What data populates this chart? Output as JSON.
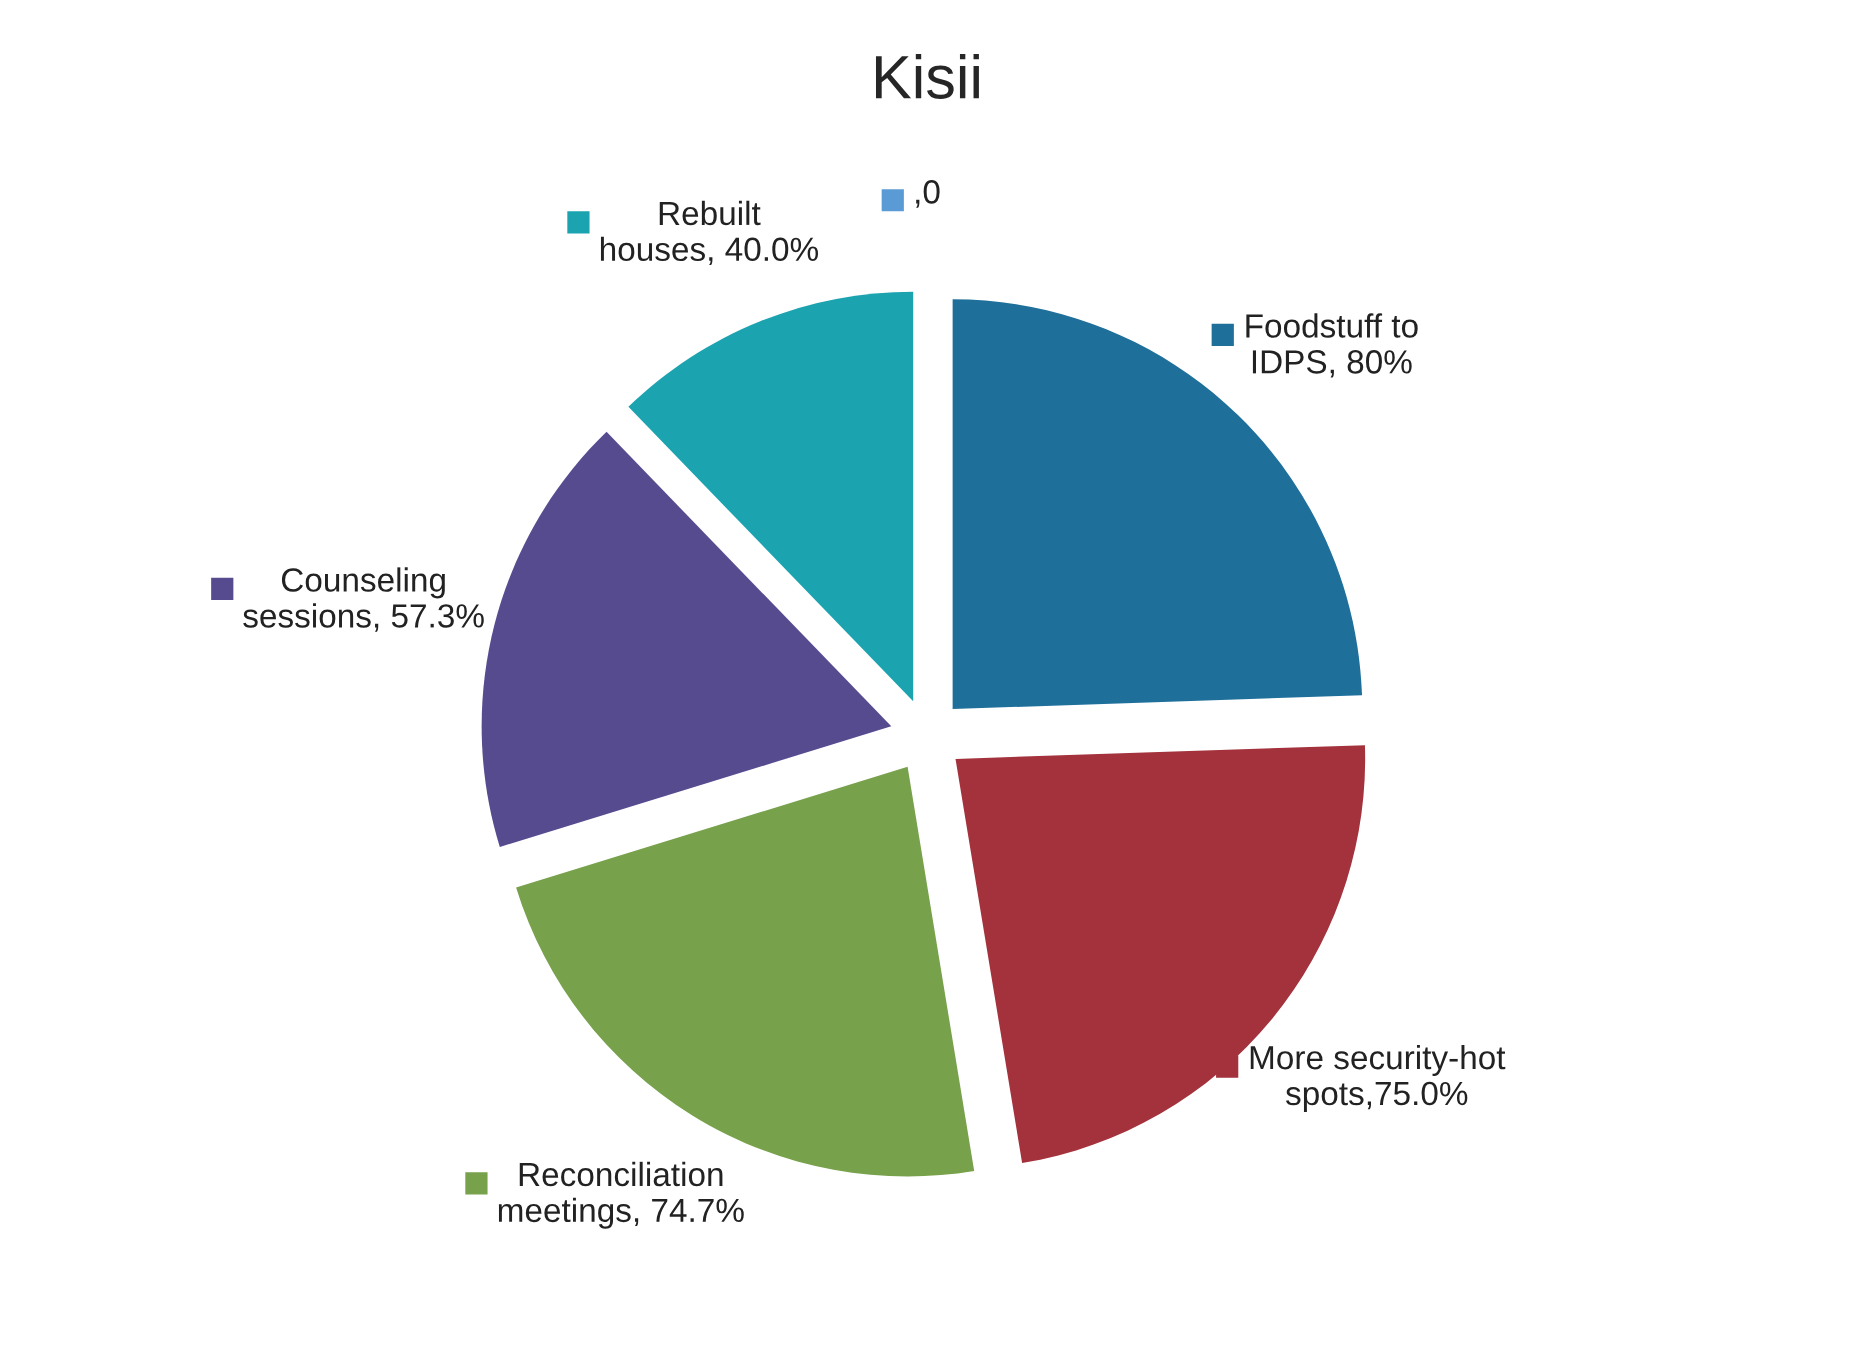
{
  "chart_data": {
    "type": "pie",
    "title": "Kisii",
    "categories": [
      "Foodstuff to IDPS",
      "More security-hot spots",
      "Reconciliation meetings",
      "Counseling sessions",
      "Rebuilt houses",
      null
    ],
    "values": [
      80,
      75.0,
      74.7,
      57.3,
      40.0,
      0
    ],
    "value_labels": [
      ", 80%",
      ",75.0%",
      ", 74.7%",
      ", 57.3%",
      ", 40.0%",
      ",0"
    ],
    "colors": [
      "#1f6f9b",
      "#a3323c",
      "#78a14c",
      "#574b8f",
      "#1ba3b0",
      "#5b9bd5"
    ],
    "legend": "top left"
  }
}
